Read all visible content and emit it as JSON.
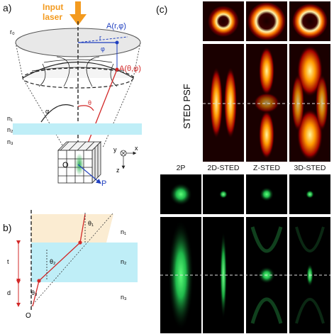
{
  "panel_a": {
    "label": "a)",
    "input_text_line1": "Input",
    "input_text_line2": "laser",
    "r0": "r₀",
    "r": "r",
    "phi": "φ",
    "point_A_blue": "A(r,φ)",
    "point_A_red": "A(θ,φ)",
    "alpha": "α",
    "theta": "θ",
    "n1": "n₁",
    "n2": "n₂",
    "n3": "n₃",
    "origin": "O",
    "p": "P",
    "axis_y": "y",
    "axis_x": "x",
    "axis_z": "z"
  },
  "panel_b": {
    "label": "b)",
    "theta1": "θ₁",
    "theta2": "θ₂",
    "theta3": "θ₃",
    "n1": "n₁",
    "n2": "n₂",
    "n3": "n₃",
    "t": "t",
    "d": "d",
    "origin": "O"
  },
  "panel_c": {
    "label": "(c)",
    "row_label": "STED PSF",
    "columns": [
      "2P",
      "2D-STED",
      "Z-STED",
      "3D-STED"
    ]
  },
  "colors": {
    "orange_arrow": "#F39A1E",
    "blue": "#1f3fbf",
    "red": "#d22828",
    "cyan_layer": "#bfeef7",
    "beige_layer": "#fbecd2"
  }
}
